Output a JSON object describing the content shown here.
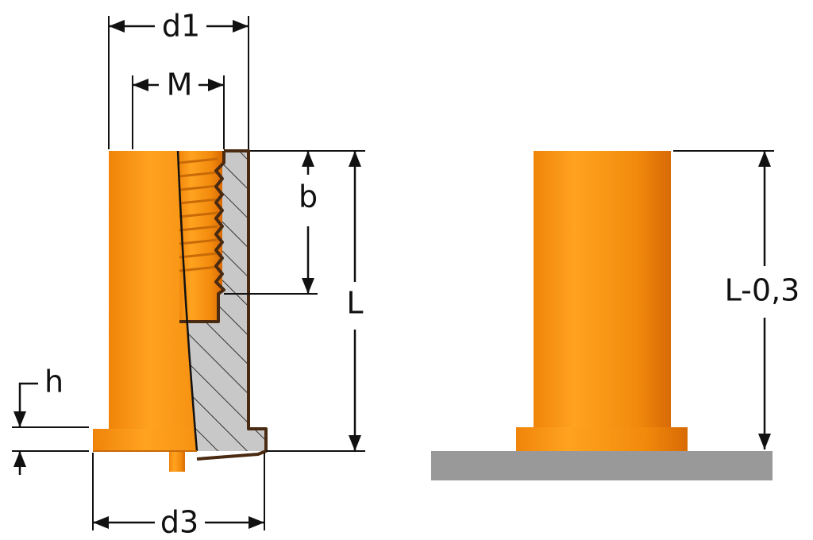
{
  "labels": {
    "d1": "d1",
    "M": "M",
    "b": "b",
    "L": "L",
    "h": "h",
    "d3": "d3",
    "L_tol": "L-0,3"
  }
}
